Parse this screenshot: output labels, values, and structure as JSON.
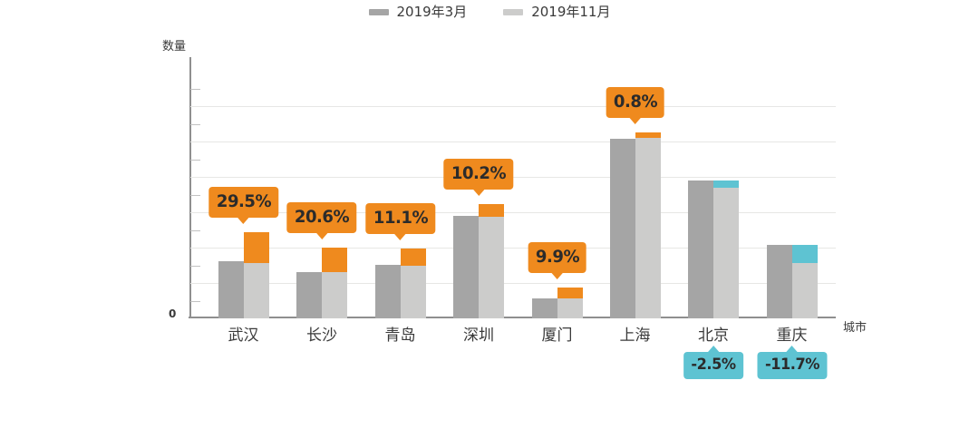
{
  "chart_data": {
    "type": "bar",
    "title": "",
    "ylabel": "数量",
    "xlabel": "城市",
    "zero_label": "0",
    "grid": true,
    "legend_position": "top-center",
    "axis_numeric_labels": false,
    "value_units": "relative height in px (y axis has no numeric tick labels; values estimated from bar pixels)",
    "legend": [
      {
        "name": "2019年3月",
        "color": "#a5a5a5"
      },
      {
        "name": "2019年11月",
        "color": "#cccccb"
      }
    ],
    "categories": [
      "武汉",
      "长沙",
      "青岛",
      "深圳",
      "厦门",
      "上海",
      "北京",
      "重庆"
    ],
    "series": [
      {
        "name": "2019年3月",
        "values": [
          63,
          51.5,
          59,
          113,
          22,
          198,
          152.5,
          81
        ]
      },
      {
        "name": "2019年11月",
        "values": [
          95,
          78,
          77,
          126,
          34,
          205,
          144,
          61
        ]
      }
    ],
    "change_labels": [
      "29.5%",
      "20.6%",
      "11.1%",
      "10.2%",
      "9.9%",
      "0.8%",
      "-2.5%",
      "-11.7%"
    ],
    "bars": [
      {
        "city": "武汉",
        "march_h": 63,
        "nov_gray_h": 61,
        "cap_h": 34,
        "direction": "up",
        "label": "29.5%"
      },
      {
        "city": "长沙",
        "march_h": 51.5,
        "nov_gray_h": 51,
        "cap_h": 27,
        "direction": "up",
        "label": "20.6%"
      },
      {
        "city": "青岛",
        "march_h": 59,
        "nov_gray_h": 58,
        "cap_h": 19,
        "direction": "up",
        "label": "11.1%"
      },
      {
        "city": "深圳",
        "march_h": 113,
        "nov_gray_h": 112,
        "cap_h": 14,
        "direction": "up",
        "label": "10.2%"
      },
      {
        "city": "厦门",
        "march_h": 22,
        "nov_gray_h": 22,
        "cap_h": 12,
        "direction": "up",
        "label": "9.9%"
      },
      {
        "city": "上海",
        "march_h": 198,
        "nov_gray_h": 199,
        "cap_h": 6,
        "direction": "up",
        "label": "0.8%"
      },
      {
        "city": "北京",
        "march_h": 152.5,
        "nov_gray_h": 144,
        "cap_h": 8.5,
        "direction": "down",
        "label": "-2.5%"
      },
      {
        "city": "重庆",
        "march_h": 81,
        "nov_gray_h": 61,
        "cap_h": 20,
        "direction": "down",
        "label": "-11.7%"
      }
    ],
    "colors": {
      "march_bar": "#a5a5a5",
      "november_bar": "#cccccb",
      "increase": "#ef8a1e",
      "decrease": "#5ec3d2",
      "gridline": "#e7e7e5",
      "axis": "#8f8f8f",
      "text": "#3a3a3a",
      "callout_text": "#2b2b2b"
    }
  }
}
